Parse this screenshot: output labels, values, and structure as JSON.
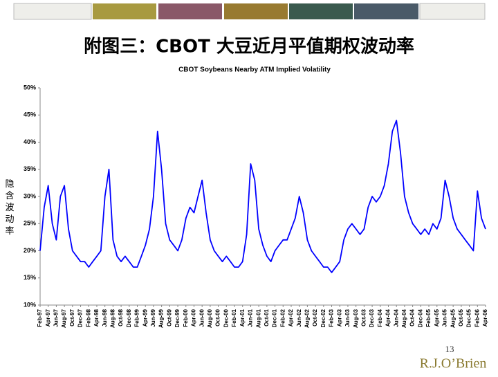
{
  "header": {
    "title": "附图三：CBOT 大豆近月平值期权波动率"
  },
  "chart_data": {
    "type": "line",
    "title": "CBOT Soybeans Nearby ATM Implied Volatility",
    "ylabel": "隐含波动率",
    "categories": [
      "Feb-97",
      null,
      "Apr-97",
      null,
      "Jun-97",
      null,
      "Aug-97",
      null,
      "Oct-97",
      null,
      "Dec-97",
      null,
      "Feb-98",
      null,
      "Apr-98",
      null,
      "Jun-98",
      null,
      "Aug-98",
      null,
      "Oct-98",
      null,
      "Dec-98",
      null,
      "Feb-99",
      null,
      "Apr-99",
      null,
      "Jun-99",
      null,
      "Aug-99",
      null,
      "Oct-99",
      null,
      "Dec-99",
      null,
      "Feb-00",
      null,
      "Apr-00",
      null,
      "Jun-00",
      null,
      "Aug-00",
      null,
      "Oct-00",
      null,
      "Dec-00",
      null,
      "Feb-01",
      null,
      "Apr-01",
      null,
      "Jun-01",
      null,
      "Aug-01",
      null,
      "Oct-01",
      null,
      "Dec-01",
      null,
      "Feb-02",
      null,
      "Apr-02",
      null,
      "Jun-02",
      null,
      "Aug-02",
      null,
      "Oct-02",
      null,
      "Dec-02",
      null,
      "Feb-03",
      null,
      "Apr-03",
      null,
      "Jun-03",
      null,
      "Aug-03",
      null,
      "Oct-03",
      null,
      "Dec-03",
      null,
      "Feb-04",
      null,
      "Apr-04",
      null,
      "Jun-04",
      null,
      "Aug-04",
      null,
      "Oct-04",
      null,
      "Dec-04",
      null,
      "Feb-05",
      null,
      "Apr-05",
      null,
      "Jun-05",
      null,
      "Aug-05",
      null,
      "Oct-05",
      null,
      "Dec-05",
      null,
      "Feb-06",
      null,
      "Apr-06"
    ],
    "values": [
      20,
      28,
      32,
      25,
      22,
      30,
      32,
      24,
      20,
      19,
      18,
      18,
      17,
      18,
      19,
      20,
      30,
      35,
      22,
      19,
      18,
      19,
      18,
      17,
      17,
      19,
      21,
      24,
      30,
      42,
      35,
      25,
      22,
      21,
      20,
      22,
      26,
      28,
      27,
      30,
      33,
      27,
      22,
      20,
      19,
      18,
      19,
      18,
      17,
      17,
      18,
      23,
      36,
      33,
      24,
      21,
      19,
      18,
      20,
      21,
      22,
      22,
      24,
      26,
      30,
      27,
      22,
      20,
      19,
      18,
      17,
      17,
      16,
      17,
      18,
      22,
      24,
      25,
      24,
      23,
      24,
      28,
      30,
      29,
      30,
      32,
      36,
      42,
      44,
      38,
      30,
      27,
      25,
      24,
      23,
      24,
      23,
      25,
      24,
      26,
      33,
      30,
      26,
      24,
      23,
      22,
      21,
      20,
      31,
      26,
      24
    ],
    "color": "#0000ff",
    "ylim": [
      10,
      50
    ],
    "yticks": [
      {
        "value": 10,
        "label": "10%"
      },
      {
        "value": 15,
        "label": "15%"
      },
      {
        "value": 20,
        "label": "20%"
      },
      {
        "value": 25,
        "label": "25%"
      },
      {
        "value": 30,
        "label": "30%"
      },
      {
        "value": 35,
        "label": "35%"
      },
      {
        "value": 40,
        "label": "40%"
      },
      {
        "value": 45,
        "label": "45%"
      },
      {
        "value": 50,
        "label": "50%"
      }
    ],
    "grid": false
  },
  "footer": {
    "page": "13",
    "logo": "R.J.O’Brien"
  }
}
